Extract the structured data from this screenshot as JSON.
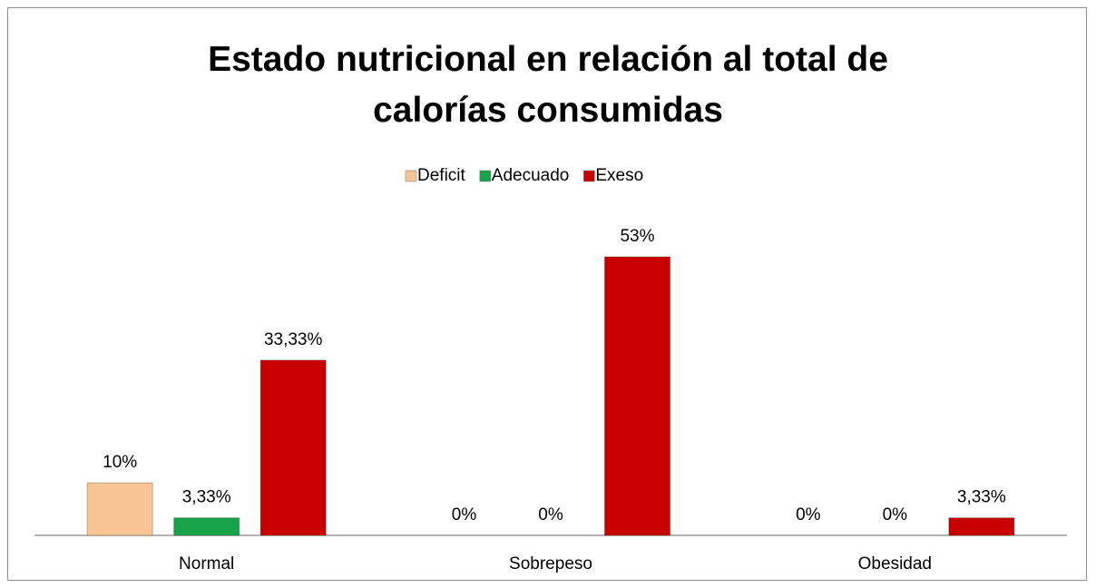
{
  "chart_data": {
    "type": "bar",
    "title": "Estado nutricional en relación al total de calorías consumidas",
    "categories": [
      "Normal",
      "Sobrepeso",
      "Obesidad"
    ],
    "series": [
      {
        "name": "Deficit",
        "color": "#f6c593",
        "values": [
          10,
          0,
          0
        ],
        "value_labels": [
          "10%",
          "0%",
          "0%"
        ]
      },
      {
        "name": "Adecuado",
        "color": "#16a349",
        "values": [
          3.33,
          0,
          0
        ],
        "value_labels": [
          "3,33%",
          "0%",
          "0%"
        ]
      },
      {
        "name": "Exeso",
        "color": "#c80000",
        "values": [
          33.33,
          53,
          3.33
        ],
        "value_labels": [
          "33,33%",
          "53%",
          "3,33%"
        ]
      }
    ],
    "legend": "top"
  }
}
